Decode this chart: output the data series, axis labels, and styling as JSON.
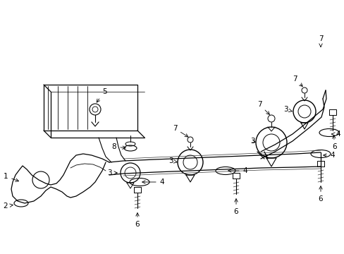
{
  "bg_color": "#ffffff",
  "line_color": "#000000",
  "fig_width": 4.89,
  "fig_height": 3.6,
  "dpi": 100,
  "border": [
    5,
    5,
    484,
    355
  ]
}
